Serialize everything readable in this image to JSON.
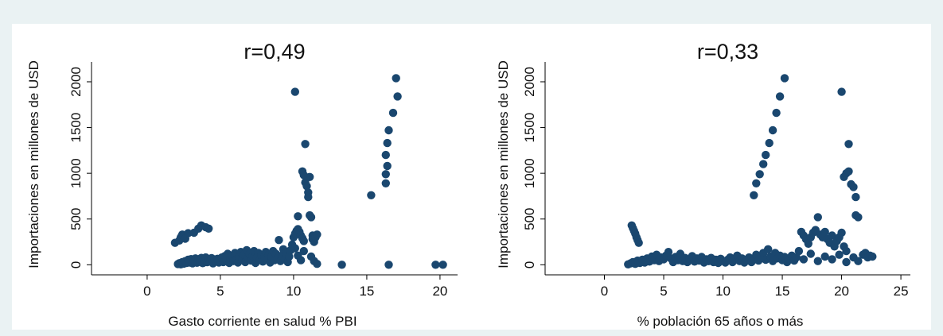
{
  "chart_data": [
    {
      "type": "scatter",
      "title": "r=0,49",
      "xlabel": "Gasto corriente en salud % PBI",
      "ylabel": "Importaciones en millones de USD",
      "xlim": [
        -3.8,
        21.2
      ],
      "ylim": [
        -110,
        2130
      ],
      "xticks": [
        0,
        5,
        10,
        15,
        20
      ],
      "yticks": [
        0,
        500,
        1000,
        1500,
        2000
      ],
      "grid": false,
      "marker_color": "#1a476f",
      "points": [
        [
          1.9,
          240
        ],
        [
          2.2,
          265
        ],
        [
          2.3,
          300
        ],
        [
          2.4,
          330
        ],
        [
          2.5,
          310
        ],
        [
          2.6,
          285
        ],
        [
          2.8,
          345
        ],
        [
          3.2,
          350
        ],
        [
          3.5,
          395
        ],
        [
          3.7,
          430
        ],
        [
          4.0,
          410
        ],
        [
          4.2,
          395
        ],
        [
          2.1,
          8
        ],
        [
          2.2,
          18
        ],
        [
          2.3,
          5
        ],
        [
          2.4,
          30
        ],
        [
          2.5,
          12
        ],
        [
          2.6,
          40
        ],
        [
          2.7,
          20
        ],
        [
          2.8,
          55
        ],
        [
          2.9,
          25
        ],
        [
          3.0,
          62
        ],
        [
          3.1,
          15
        ],
        [
          3.2,
          48
        ],
        [
          3.3,
          70
        ],
        [
          3.4,
          22
        ],
        [
          3.5,
          60
        ],
        [
          3.6,
          35
        ],
        [
          3.7,
          75
        ],
        [
          3.8,
          18
        ],
        [
          3.9,
          55
        ],
        [
          4.0,
          80
        ],
        [
          4.1,
          28
        ],
        [
          4.2,
          60
        ],
        [
          4.3,
          40
        ],
        [
          4.4,
          72
        ],
        [
          4.5,
          15
        ],
        [
          4.6,
          58
        ],
        [
          4.7,
          35
        ],
        [
          4.8,
          65
        ],
        [
          4.9,
          25
        ],
        [
          5.0,
          50
        ],
        [
          5.1,
          80
        ],
        [
          5.2,
          30
        ],
        [
          5.3,
          95
        ],
        [
          5.4,
          50
        ],
        [
          5.5,
          120
        ],
        [
          5.6,
          20
        ],
        [
          5.7,
          70
        ],
        [
          5.8,
          100
        ],
        [
          5.9,
          40
        ],
        [
          6.0,
          130
        ],
        [
          6.1,
          60
        ],
        [
          6.2,
          25
        ],
        [
          6.3,
          90
        ],
        [
          6.4,
          140
        ],
        [
          6.5,
          55
        ],
        [
          6.6,
          110
        ],
        [
          6.7,
          30
        ],
        [
          6.8,
          160
        ],
        [
          6.9,
          75
        ],
        [
          7.0,
          120
        ],
        [
          7.1,
          45
        ],
        [
          7.2,
          95
        ],
        [
          7.3,
          150
        ],
        [
          7.4,
          20
        ],
        [
          7.5,
          80
        ],
        [
          7.6,
          130
        ],
        [
          7.7,
          55
        ],
        [
          7.8,
          100
        ],
        [
          7.9,
          35
        ],
        [
          8.0,
          85
        ],
        [
          8.1,
          140
        ],
        [
          8.2,
          60
        ],
        [
          8.3,
          110
        ],
        [
          8.4,
          25
        ],
        [
          8.5,
          90
        ],
        [
          8.6,
          150
        ],
        [
          8.7,
          50
        ],
        [
          8.8,
          120
        ],
        [
          8.9,
          70
        ],
        [
          9.0,
          270
        ],
        [
          9.1,
          40
        ],
        [
          9.2,
          100
        ],
        [
          9.3,
          170
        ],
        [
          9.4,
          60
        ],
        [
          9.5,
          130
        ],
        [
          9.6,
          30
        ],
        [
          9.7,
          90
        ],
        [
          9.8,
          160
        ],
        [
          9.9,
          220
        ],
        [
          10.0,
          300
        ],
        [
          10.1,
          340
        ],
        [
          10.2,
          370
        ],
        [
          10.3,
          390
        ],
        [
          10.4,
          360
        ],
        [
          10.5,
          320
        ],
        [
          10.6,
          290
        ],
        [
          10.7,
          260
        ],
        [
          10.1,
          180
        ],
        [
          10.3,
          100
        ],
        [
          10.5,
          50
        ],
        [
          10.7,
          150
        ],
        [
          10.1,
          1890
        ],
        [
          10.3,
          530
        ],
        [
          10.6,
          1020
        ],
        [
          10.7,
          980
        ],
        [
          10.8,
          1320
        ],
        [
          10.8,
          900
        ],
        [
          10.9,
          860
        ],
        [
          11.0,
          790
        ],
        [
          11.0,
          740
        ],
        [
          11.1,
          960
        ],
        [
          11.1,
          540
        ],
        [
          11.2,
          520
        ],
        [
          11.3,
          320
        ],
        [
          11.3,
          280
        ],
        [
          11.4,
          250
        ],
        [
          11.5,
          300
        ],
        [
          11.6,
          330
        ],
        [
          11.2,
          90
        ],
        [
          11.4,
          40
        ],
        [
          11.6,
          10
        ],
        [
          13.3,
          0
        ],
        [
          15.3,
          760
        ],
        [
          16.3,
          890
        ],
        [
          16.3,
          990
        ],
        [
          16.4,
          1080
        ],
        [
          16.3,
          1200
        ],
        [
          16.4,
          1330
        ],
        [
          16.5,
          1470
        ],
        [
          16.5,
          0
        ],
        [
          16.8,
          1660
        ],
        [
          17.0,
          2040
        ],
        [
          17.1,
          1840
        ],
        [
          19.7,
          0
        ],
        [
          20.2,
          0
        ]
      ]
    },
    {
      "type": "scatter",
      "title": "r=0,33",
      "xlabel": "% población 65 años o más",
      "ylabel": "Importaciones en millones de USD",
      "xlim": [
        -5,
        25.8
      ],
      "ylim": [
        -110,
        2130
      ],
      "xticks": [
        0,
        5,
        10,
        15,
        20,
        25
      ],
      "yticks": [
        0,
        500,
        1000,
        1500,
        2000
      ],
      "grid": false,
      "marker_color": "#1a476f",
      "points": [
        [
          2.3,
          430
        ],
        [
          2.4,
          400
        ],
        [
          2.5,
          370
        ],
        [
          2.6,
          340
        ],
        [
          2.7,
          300
        ],
        [
          2.8,
          270
        ],
        [
          2.9,
          240
        ],
        [
          2.0,
          5
        ],
        [
          2.2,
          15
        ],
        [
          2.4,
          30
        ],
        [
          2.6,
          10
        ],
        [
          2.8,
          45
        ],
        [
          3.0,
          20
        ],
        [
          3.2,
          55
        ],
        [
          3.4,
          25
        ],
        [
          3.6,
          70
        ],
        [
          3.8,
          35
        ],
        [
          4.0,
          90
        ],
        [
          4.2,
          50
        ],
        [
          4.4,
          110
        ],
        [
          4.6,
          40
        ],
        [
          4.8,
          80
        ],
        [
          5.0,
          60
        ],
        [
          5.2,
          100
        ],
        [
          5.4,
          140
        ],
        [
          5.6,
          70
        ],
        [
          5.8,
          30
        ],
        [
          6.0,
          85
        ],
        [
          6.2,
          50
        ],
        [
          6.4,
          120
        ],
        [
          6.6,
          40
        ],
        [
          6.8,
          75
        ],
        [
          7.0,
          30
        ],
        [
          7.2,
          60
        ],
        [
          7.4,
          95
        ],
        [
          7.6,
          35
        ],
        [
          7.8,
          70
        ],
        [
          8.0,
          45
        ],
        [
          8.2,
          85
        ],
        [
          8.4,
          25
        ],
        [
          8.6,
          60
        ],
        [
          8.8,
          40
        ],
        [
          9.0,
          75
        ],
        [
          9.2,
          30
        ],
        [
          9.4,
          55
        ],
        [
          9.6,
          20
        ],
        [
          9.8,
          65
        ],
        [
          10.0,
          40
        ],
        [
          10.2,
          25
        ],
        [
          10.4,
          55
        ],
        [
          10.6,
          80
        ],
        [
          10.8,
          30
        ],
        [
          11.0,
          60
        ],
        [
          11.2,
          100
        ],
        [
          11.4,
          40
        ],
        [
          11.6,
          70
        ],
        [
          11.8,
          25
        ],
        [
          12.0,
          50
        ],
        [
          12.2,
          80
        ],
        [
          12.4,
          30
        ],
        [
          12.6,
          60
        ],
        [
          12.8,
          110
        ],
        [
          13.0,
          45
        ],
        [
          13.2,
          80
        ],
        [
          13.4,
          130
        ],
        [
          13.6,
          55
        ],
        [
          13.8,
          170
        ],
        [
          14.0,
          90
        ],
        [
          14.2,
          40
        ],
        [
          14.4,
          130
        ],
        [
          14.6,
          70
        ],
        [
          14.8,
          100
        ],
        [
          15.0,
          50
        ],
        [
          15.2,
          85
        ],
        [
          15.4,
          30
        ],
        [
          15.6,
          60
        ],
        [
          15.8,
          100
        ],
        [
          16.0,
          45
        ],
        [
          16.2,
          80
        ],
        [
          16.4,
          150
        ],
        [
          16.6,
          360
        ],
        [
          16.8,
          320
        ],
        [
          17.0,
          280
        ],
        [
          17.2,
          230
        ],
        [
          17.4,
          300
        ],
        [
          17.6,
          350
        ],
        [
          17.8,
          380
        ],
        [
          18.0,
          520
        ],
        [
          18.2,
          330
        ],
        [
          18.4,
          300
        ],
        [
          18.6,
          360
        ],
        [
          18.8,
          280
        ],
        [
          19.0,
          240
        ],
        [
          19.2,
          320
        ],
        [
          19.4,
          200
        ],
        [
          19.6,
          260
        ],
        [
          19.8,
          300
        ],
        [
          20.0,
          350
        ],
        [
          20.2,
          200
        ],
        [
          20.4,
          150
        ],
        [
          16.8,
          60
        ],
        [
          17.4,
          120
        ],
        [
          18.0,
          40
        ],
        [
          18.6,
          90
        ],
        [
          19.2,
          60
        ],
        [
          19.8,
          110
        ],
        [
          20.4,
          30
        ],
        [
          21.0,
          80
        ],
        [
          21.4,
          40
        ],
        [
          21.8,
          110
        ],
        [
          22.0,
          130
        ],
        [
          22.2,
          80
        ],
        [
          22.4,
          100
        ],
        [
          22.6,
          90
        ],
        [
          12.6,
          760
        ],
        [
          12.8,
          890
        ],
        [
          13.1,
          990
        ],
        [
          13.4,
          1100
        ],
        [
          13.6,
          1200
        ],
        [
          13.9,
          1330
        ],
        [
          14.2,
          1470
        ],
        [
          14.5,
          1660
        ],
        [
          14.8,
          1840
        ],
        [
          15.2,
          2040
        ],
        [
          20.0,
          1890
        ],
        [
          20.2,
          960
        ],
        [
          20.4,
          1000
        ],
        [
          20.6,
          1320
        ],
        [
          20.6,
          1020
        ],
        [
          20.8,
          880
        ],
        [
          21.0,
          850
        ],
        [
          21.2,
          740
        ],
        [
          21.2,
          540
        ],
        [
          21.4,
          520
        ]
      ]
    }
  ]
}
